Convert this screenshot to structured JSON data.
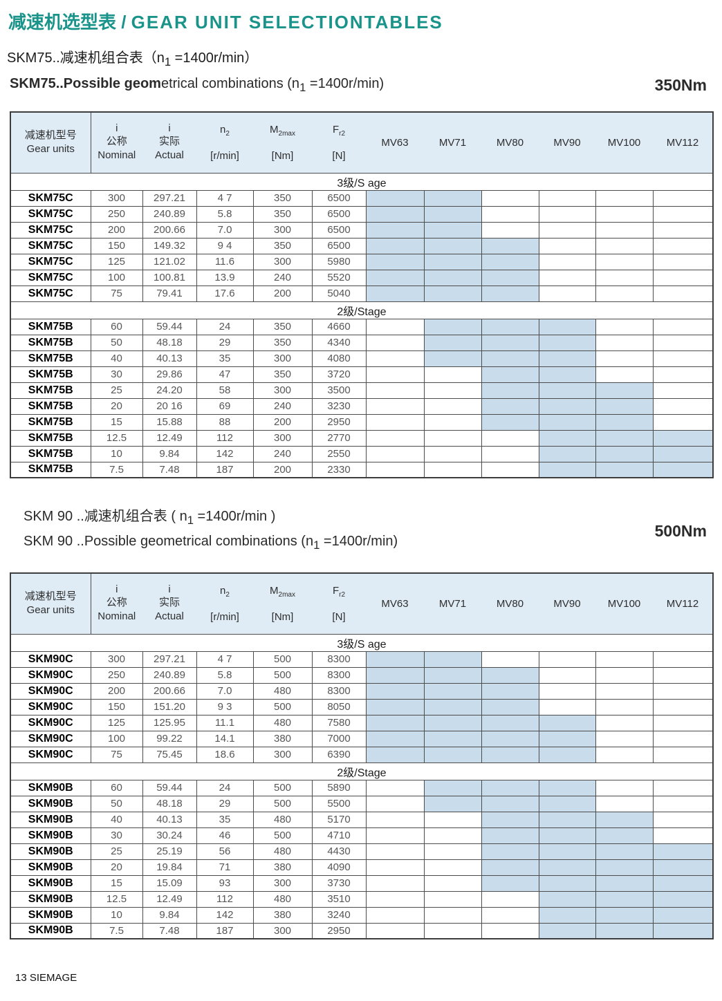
{
  "page": {
    "title_segments": [
      {
        "t": "减速机选型表 / "
      },
      {
        "t": "GEAR UNIT SELECTIONTABLES",
        "cls": "ls"
      }
    ],
    "footer": "13 SIEMAGE"
  },
  "colors": {
    "accent_teal": "#1a948a",
    "table_header_bg": "#dfebf5",
    "available_cell_bg": "#c8dcec",
    "border": "#4c4c4c"
  },
  "columns": [
    {
      "zh": "减速机型号",
      "en": "Gear units"
    },
    {
      "sym": "i",
      "zh": "公称",
      "en": "Nominal"
    },
    {
      "sym": "i",
      "zh": "实际",
      "en": "Actual"
    },
    {
      "sym": "n",
      "sub": "2",
      "unit": "[r/min]"
    },
    {
      "sym": "M",
      "sub": "2max",
      "unit": "[Nm]"
    },
    {
      "sym": "F",
      "sub": "r2",
      "unit": "[N]"
    },
    {
      "motor": "MV63"
    },
    {
      "motor": "MV71"
    },
    {
      "motor": "MV80"
    },
    {
      "motor": "MV90"
    },
    {
      "motor": "MV100"
    },
    {
      "motor": "MV112"
    }
  ],
  "tables": [
    {
      "id": "skm75",
      "heading_zh_segments": [
        {
          "t": "SKM75..减速机组合表（n"
        },
        {
          "t": "1",
          "sub": true
        },
        {
          "t": " =1400r/min）"
        }
      ],
      "heading_en_segments": [
        {
          "t": "SKM75..Possible geom",
          "b": true
        },
        {
          "t": "etrical combinations  (n"
        },
        {
          "t": "1",
          "sub": true
        },
        {
          "t": " =1400r/min)"
        }
      ],
      "torque": "350Nm",
      "sections": [
        {
          "label": "3级/S age",
          "rows": [
            {
              "model": "SKM75C",
              "vals": [
                "300",
                "297.21",
                "4 7",
                "350",
                "6500"
              ],
              "mv": [
                1,
                1,
                0,
                0,
                0,
                0
              ]
            },
            {
              "model": "SKM75C",
              "vals": [
                "250",
                "240.89",
                "5.8",
                "350",
                "6500"
              ],
              "mv": [
                1,
                1,
                0,
                0,
                0,
                0
              ]
            },
            {
              "model": "SKM75C",
              "vals": [
                "200",
                "200.66",
                "7.0",
                "300",
                "6500"
              ],
              "mv": [
                1,
                1,
                0,
                0,
                0,
                0
              ]
            },
            {
              "model": "SKM75C",
              "vals": [
                "150",
                "149.32",
                "9 4",
                "350",
                "6500"
              ],
              "mv": [
                1,
                1,
                1,
                0,
                0,
                0
              ]
            },
            {
              "model": "SKM75C",
              "vals": [
                "125",
                "121.02",
                "11.6",
                "300",
                "5980"
              ],
              "mv": [
                1,
                1,
                1,
                0,
                0,
                0
              ]
            },
            {
              "model": "SKM75C",
              "vals": [
                "100",
                "100.81",
                "13.9",
                "240",
                "5520"
              ],
              "mv": [
                1,
                1,
                1,
                0,
                0,
                0
              ]
            },
            {
              "model": "SKM75C",
              "vals": [
                "75",
                "79.41",
                "17.6",
                "200",
                "5040"
              ],
              "mv": [
                1,
                1,
                1,
                0,
                0,
                0
              ]
            }
          ]
        },
        {
          "label": "2级/Stage",
          "rows": [
            {
              "model": "SKM75B",
              "vals": [
                "60",
                "59.44",
                "24",
                "350",
                "4660"
              ],
              "mv": [
                0,
                1,
                1,
                1,
                0,
                0
              ]
            },
            {
              "model": "SKM75B",
              "vals": [
                "50",
                "48.18",
                "29",
                "350",
                "4340"
              ],
              "mv": [
                0,
                1,
                1,
                1,
                0,
                0
              ]
            },
            {
              "model": "SKM75B",
              "vals": [
                "40",
                "40.13",
                "35",
                "300",
                "4080"
              ],
              "mv": [
                0,
                1,
                1,
                1,
                0,
                0
              ]
            },
            {
              "model": "SKM75B",
              "vals": [
                "30",
                "29.86",
                "47",
                "350",
                "3720"
              ],
              "mv": [
                0,
                0,
                1,
                1,
                0,
                0
              ]
            },
            {
              "model": "SKM75B",
              "vals": [
                "25",
                "24.20",
                "58",
                "300",
                "3500"
              ],
              "mv": [
                0,
                0,
                1,
                1,
                1,
                0
              ]
            },
            {
              "model": "SKM75B",
              "vals": [
                "20",
                "20 16",
                "69",
                "240",
                "3230"
              ],
              "mv": [
                0,
                0,
                1,
                1,
                1,
                0
              ]
            },
            {
              "model": "SKM75B",
              "vals": [
                "15",
                "15.88",
                "88",
                "200",
                "2950"
              ],
              "mv": [
                0,
                0,
                1,
                1,
                1,
                0
              ]
            },
            {
              "model": "SKM75B",
              "vals": [
                "12.5",
                "12.49",
                "112",
                "300",
                "2770"
              ],
              "mv": [
                0,
                0,
                0,
                1,
                1,
                1
              ]
            },
            {
              "model": "SKM75B",
              "vals": [
                "10",
                "9.84",
                "142",
                "240",
                "2550"
              ],
              "mv": [
                0,
                0,
                0,
                1,
                1,
                1
              ]
            },
            {
              "model": "SKM75B",
              "vals": [
                "7.5",
                "7.48",
                "187",
                "200",
                "2330"
              ],
              "mv": [
                0,
                0,
                0,
                1,
                1,
                1
              ]
            }
          ]
        }
      ]
    },
    {
      "id": "skm90",
      "heading_zh_segments": [
        {
          "t": "SKM 90 ..减速机组合表 ( n"
        },
        {
          "t": "1",
          "sub": true
        },
        {
          "t": " =1400r/min )"
        }
      ],
      "heading_en_segments": [
        {
          "t": "SKM 90 ..Possible geometrical combinations (n"
        },
        {
          "t": "1",
          "sub": true
        },
        {
          "t": " =1400r/min)"
        }
      ],
      "torque": "500Nm",
      "sections": [
        {
          "label": "3级/S age",
          "rows": [
            {
              "model": "SKM90C",
              "vals": [
                "300",
                "297.21",
                "4 7",
                "500",
                "8300"
              ],
              "mv": [
                1,
                1,
                0,
                0,
                0,
                0
              ]
            },
            {
              "model": "SKM90C",
              "vals": [
                "250",
                "240.89",
                "5.8",
                "500",
                "8300"
              ],
              "mv": [
                1,
                1,
                1,
                0,
                0,
                0
              ]
            },
            {
              "model": "SKM90C",
              "vals": [
                "200",
                "200.66",
                "7.0",
                "480",
                "8300"
              ],
              "mv": [
                1,
                1,
                1,
                0,
                0,
                0
              ]
            },
            {
              "model": "SKM90C",
              "vals": [
                "150",
                "151.20",
                "9 3",
                "500",
                "8050"
              ],
              "mv": [
                1,
                1,
                1,
                0,
                0,
                0
              ]
            },
            {
              "model": "SKM90C",
              "vals": [
                "125",
                "125.95",
                "11.1",
                "480",
                "7580"
              ],
              "mv": [
                1,
                1,
                1,
                1,
                0,
                0
              ]
            },
            {
              "model": "SKM90C",
              "vals": [
                "100",
                "99.22",
                "14.1",
                "380",
                "7000"
              ],
              "mv": [
                1,
                1,
                1,
                1,
                0,
                0
              ]
            },
            {
              "model": "SKM90C",
              "vals": [
                "75",
                "75.45",
                "18.6",
                "300",
                "6390"
              ],
              "mv": [
                1,
                1,
                1,
                1,
                0,
                0
              ]
            }
          ]
        },
        {
          "label": "2级/Stage",
          "rows": [
            {
              "model": "SKM90B",
              "vals": [
                "60",
                "59.44",
                "24",
                "500",
                "5890"
              ],
              "mv": [
                0,
                1,
                1,
                1,
                0,
                0
              ]
            },
            {
              "model": "SKM90B",
              "vals": [
                "50",
                "48.18",
                "29",
                "500",
                "5500"
              ],
              "mv": [
                0,
                1,
                1,
                1,
                0,
                0
              ]
            },
            {
              "model": "SKM90B",
              "vals": [
                "40",
                "40.13",
                "35",
                "480",
                "5170"
              ],
              "mv": [
                0,
                0,
                1,
                1,
                1,
                0
              ]
            },
            {
              "model": "SKM90B",
              "vals": [
                "30",
                "30.24",
                "46",
                "500",
                "4710"
              ],
              "mv": [
                0,
                0,
                1,
                1,
                1,
                0
              ]
            },
            {
              "model": "SKM90B",
              "vals": [
                "25",
                "25.19",
                "56",
                "480",
                "4430"
              ],
              "mv": [
                0,
                0,
                1,
                1,
                1,
                1
              ]
            },
            {
              "model": "SKM90B",
              "vals": [
                "20",
                "19.84",
                "71",
                "380",
                "4090"
              ],
              "mv": [
                0,
                0,
                1,
                1,
                1,
                1
              ]
            },
            {
              "model": "SKM90B",
              "vals": [
                "15",
                "15.09",
                "93",
                "300",
                "3730"
              ],
              "mv": [
                0,
                0,
                1,
                1,
                1,
                1
              ]
            },
            {
              "model": "SKM90B",
              "vals": [
                "12.5",
                "12.49",
                "112",
                "480",
                "3510"
              ],
              "mv": [
                0,
                0,
                0,
                1,
                1,
                1
              ]
            },
            {
              "model": "SKM90B",
              "vals": [
                "10",
                "9.84",
                "142",
                "380",
                "3240"
              ],
              "mv": [
                0,
                0,
                0,
                1,
                1,
                1
              ]
            },
            {
              "model": "SKM90B",
              "vals": [
                "7.5",
                "7.48",
                "187",
                "300",
                "2950"
              ],
              "mv": [
                0,
                0,
                0,
                1,
                1,
                1
              ]
            }
          ]
        }
      ]
    }
  ]
}
